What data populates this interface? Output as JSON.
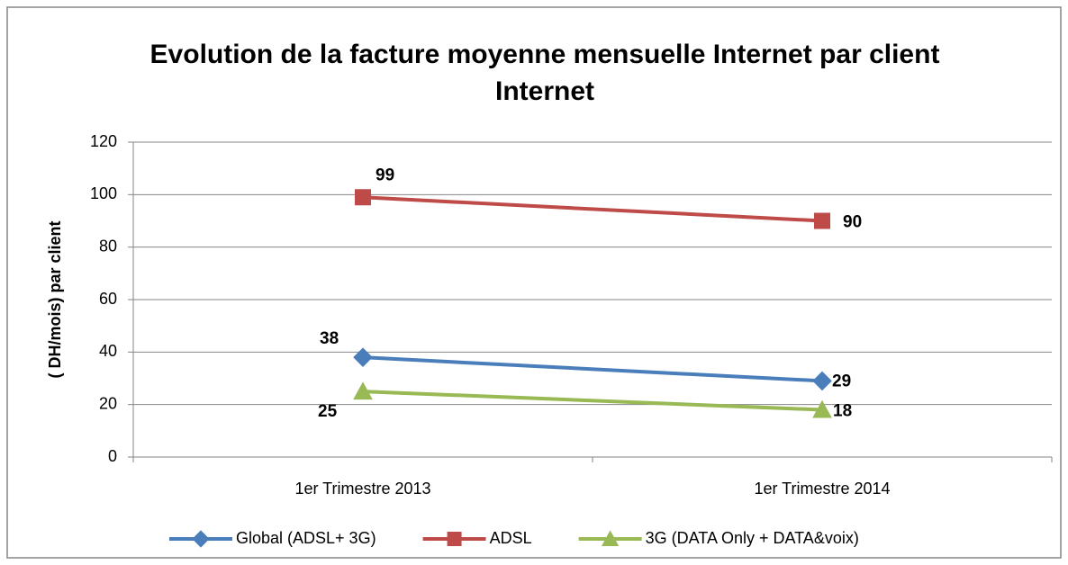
{
  "chart_data": {
    "type": "line",
    "title": "Evolution de la facture moyenne mensuelle Internet par client Internet",
    "y_axis_label": "( DH/mois) par client",
    "categories": [
      "1er Trimestre 2013",
      "1er Trimestre 2014"
    ],
    "series": [
      {
        "name": "Global (ADSL+ 3G)",
        "color": "#4a7ebb",
        "marker": "diamond",
        "values": [
          38,
          29
        ]
      },
      {
        "name": "ADSL",
        "color": "#be4b48",
        "marker": "square",
        "values": [
          99,
          90
        ]
      },
      {
        "name": "3G (DATA Only + DATA&voix)",
        "color": "#98b954",
        "marker": "triangle",
        "values": [
          25,
          18
        ]
      }
    ],
    "ylim": [
      0,
      120
    ],
    "yticks": [
      0,
      20,
      40,
      60,
      80,
      100,
      120
    ],
    "grid": true,
    "legend": "bottom"
  }
}
